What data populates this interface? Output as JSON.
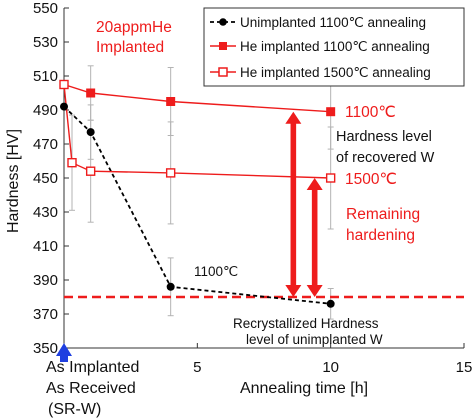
{
  "chart_data": {
    "type": "line",
    "ylabel": "Hardness [HV]",
    "xlabel": "Annealing time [h]",
    "xlim": [
      0,
      15
    ],
    "ylim": [
      350,
      550
    ],
    "x_ticks": [
      {
        "value": 0,
        "label": "As Implanted"
      },
      {
        "value": 5,
        "label": "5"
      },
      {
        "value": 10,
        "label": "10"
      },
      {
        "value": 15,
        "label": "15"
      }
    ],
    "x_zero_sublabels": [
      "As Received",
      "(SR-W)"
    ],
    "y_ticks": [
      350,
      370,
      390,
      410,
      430,
      450,
      470,
      490,
      510,
      530,
      550
    ],
    "grid": false,
    "legend_position": "top-right",
    "series": [
      {
        "name": "Unimplanted 1100℃ annealing",
        "color": "#000000",
        "line_style": "dashed",
        "marker": "filled-circle",
        "points": [
          {
            "x": 0,
            "y": 492,
            "err": 0
          },
          {
            "x": 1,
            "y": 477,
            "err": 16
          },
          {
            "x": 4,
            "y": 386,
            "err": 17
          },
          {
            "x": 10,
            "y": 376,
            "err": 9
          }
        ]
      },
      {
        "name": "He implanted 1100℃ annealing",
        "color": "#ee1c1c",
        "line_style": "solid",
        "marker": "filled-square",
        "points": [
          {
            "x": 0,
            "y": 505,
            "err": 0
          },
          {
            "x": 1,
            "y": 500,
            "err": 16
          },
          {
            "x": 4,
            "y": 495,
            "err": 20
          },
          {
            "x": 10,
            "y": 489,
            "err": 22
          }
        ]
      },
      {
        "name": "He implanted 1500℃ annealing",
        "color": "#ee1c1c",
        "line_style": "solid",
        "marker": "open-square",
        "points": [
          {
            "x": 0,
            "y": 505,
            "err": 0
          },
          {
            "x": 0.3,
            "y": 459,
            "err": 28
          },
          {
            "x": 1,
            "y": 454,
            "err": 30
          },
          {
            "x": 4,
            "y": 453,
            "err": 30
          },
          {
            "x": 10,
            "y": 450,
            "err": 30
          }
        ]
      }
    ],
    "reference_line": {
      "y": 380,
      "color": "#ee1c1c",
      "style": "dashed"
    },
    "arrows": [
      {
        "x": 8.6,
        "from": 380,
        "to": 489,
        "color": "#ee1c1c"
      },
      {
        "x": 9.4,
        "from": 380,
        "to": 450,
        "color": "#ee1c1c"
      }
    ],
    "annotations": {
      "implant_label": [
        "20appmHe",
        "Implanted"
      ],
      "label_1100_right": "1100℃",
      "label_1500_right": "1500℃",
      "recovered_level": [
        "Hardness level",
        "of recovered W"
      ],
      "remaining_hardening": [
        "Remaining",
        "hardening"
      ],
      "label_1100_black": "1100℃",
      "unimplanted_level": [
        "Recrystallized Hardness",
        "level of unimplanted W"
      ]
    },
    "colors": {
      "red": "#ee1c1c",
      "black": "#000000",
      "blue": "#1f3fe0",
      "error_bar": "#b3b3b3"
    }
  }
}
